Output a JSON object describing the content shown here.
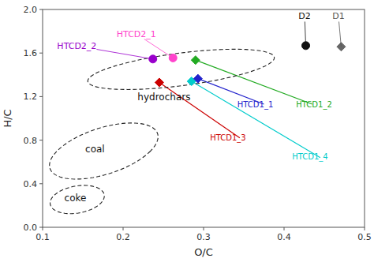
{
  "chart_data": {
    "type": "scatter",
    "xlabel": "O/C",
    "ylabel": "H/C",
    "xlim": [
      0.1,
      0.5
    ],
    "ylim": [
      0.0,
      2.0
    ],
    "xticks": [
      0.1,
      0.2,
      0.3,
      0.4,
      0.5
    ],
    "yticks": [
      {
        "value": 0.0,
        "label": "0.0"
      },
      0.4,
      0.8,
      1.2,
      1.6,
      {
        "value": 2.0,
        "label": "2.0"
      }
    ],
    "grid": false,
    "points": [
      {
        "x": 0.237,
        "y": 1.545,
        "marker": "circle",
        "color": "#9900cc",
        "label": {
          "text": "HTCD2_2",
          "x": 0.118,
          "y": 1.64,
          "color": "#9900cc"
        }
      },
      {
        "x": 0.262,
        "y": 1.555,
        "marker": "circle",
        "color": "#ff44cc",
        "label": {
          "text": "HTCD2_1",
          "x": 0.192,
          "y": 1.75,
          "color": "#ff44cc"
        }
      },
      {
        "x": 0.245,
        "y": 1.33,
        "marker": "diamond",
        "color": "#cc0000"
      },
      {
        "x": 0.285,
        "y": 1.34,
        "marker": "diamond",
        "color": "#00cccc"
      },
      {
        "x": 0.293,
        "y": 1.365,
        "marker": "diamond",
        "color": "#2222cc"
      },
      {
        "x": 0.29,
        "y": 1.535,
        "marker": "diamond",
        "color": "#22aa22"
      },
      {
        "x": 0.427,
        "y": 1.668,
        "marker": "circle",
        "color": "#111111",
        "label": {
          "text": "D2",
          "x": 0.418,
          "y": 1.91,
          "color": "#111111"
        }
      },
      {
        "x": 0.471,
        "y": 1.658,
        "marker": "diamond",
        "color": "#666666",
        "label": {
          "text": "D1",
          "x": 0.46,
          "y": 1.91,
          "color": "#555555"
        }
      }
    ],
    "lines": [
      {
        "x": [
          0.245,
          0.345
        ],
        "y": [
          1.33,
          0.82
        ],
        "color": "#cc0000"
      },
      {
        "x": [
          0.285,
          0.445
        ],
        "y": [
          1.34,
          0.64
        ],
        "color": "#00cccc"
      },
      {
        "x": [
          0.293,
          0.375
        ],
        "y": [
          1.365,
          1.13
        ],
        "color": "#2222cc"
      },
      {
        "x": [
          0.29,
          0.435
        ],
        "y": [
          1.535,
          1.13
        ],
        "color": "#22aa22"
      }
    ],
    "annotations": [
      {
        "text": "HTCD1_1",
        "x": 0.342,
        "y": 1.1,
        "color": "#2222cc"
      },
      {
        "text": "HTCD1_2",
        "x": 0.415,
        "y": 1.1,
        "color": "#22aa22"
      },
      {
        "text": "HTCD1_3",
        "x": 0.308,
        "y": 0.8,
        "color": "#cc0000"
      },
      {
        "text": "HTCD1_4",
        "x": 0.41,
        "y": 0.62,
        "color": "#00cccc"
      }
    ],
    "ellipses": [
      {
        "cx": 0.272,
        "cy": 1.45,
        "width": 0.175,
        "height": 0.4,
        "angle": -25,
        "line_style": "dashed",
        "label": {
          "text": "hydrochars",
          "x": 0.218,
          "y": 1.17
        }
      },
      {
        "cx": 0.176,
        "cy": 0.7,
        "width": 0.115,
        "height": 0.52,
        "angle": -8,
        "line_style": "dashed",
        "label": {
          "text": "coal",
          "x": 0.153,
          "y": 0.69
        }
      },
      {
        "cx": 0.143,
        "cy": 0.255,
        "width": 0.065,
        "height": 0.26,
        "angle": -4,
        "line_style": "dashed",
        "label": {
          "text": "coke",
          "x": 0.127,
          "y": 0.238
        }
      }
    ]
  }
}
